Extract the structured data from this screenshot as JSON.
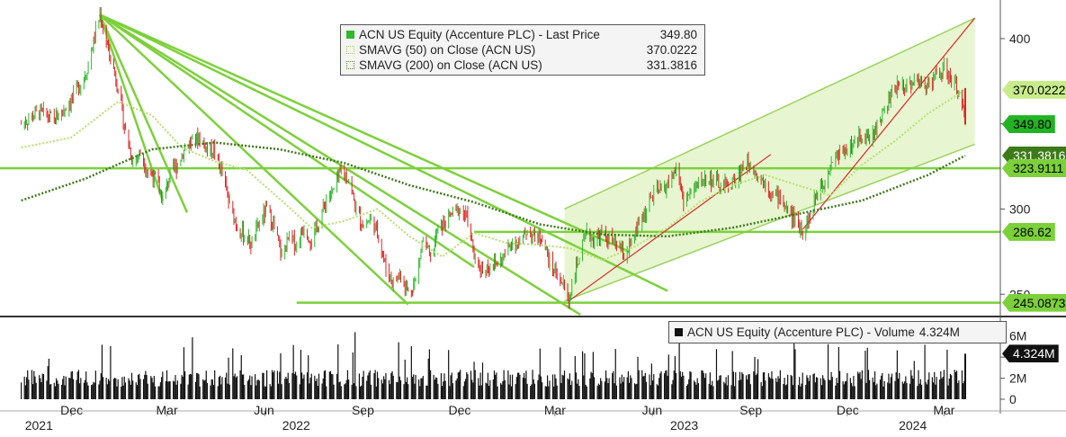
{
  "chart_data": {
    "type": "line",
    "price_panel": {
      "legend": [
        {
          "name": "ACN US Equity (Accenture PLC) - Last Price",
          "value": "349.80",
          "color": "#2eb82e"
        },
        {
          "name": "SMAVG (50)  on Close (ACN US)",
          "value": "370.0222",
          "color": "#c2e67a"
        },
        {
          "name": "SMAVG (200)  on Close (ACN US)",
          "value": "331.3816",
          "color": "#4d8a1f"
        }
      ],
      "y_ticks": [
        "400",
        "350",
        "300",
        "250"
      ],
      "ylim": [
        238,
        420
      ],
      "value_tags": [
        {
          "label": "370.0222",
          "value": 370.0222,
          "bg": "#c8ec8a",
          "fg": "#000000"
        },
        {
          "label": "349.80",
          "value": 349.8,
          "bg": "#22b322",
          "fg": "#000000"
        },
        {
          "label": "331.3816",
          "value": 331.3816,
          "bg": "#3d7a1a",
          "fg": "#ffffff"
        },
        {
          "label": "323.9111",
          "value": 323.9111,
          "bg": "#7cd13a",
          "fg": "#000000"
        },
        {
          "label": "286.62",
          "value": 286.62,
          "bg": "#7cd13a",
          "fg": "#000000"
        },
        {
          "label": "245.0873",
          "value": 245.0873,
          "bg": "#7cd13a",
          "fg": "#000000"
        }
      ],
      "close_series": [
        {
          "date": "2021-10-15",
          "close": 350
        },
        {
          "date": "2021-11-01",
          "close": 357
        },
        {
          "date": "2021-11-15",
          "close": 352
        },
        {
          "date": "2021-12-01",
          "close": 364
        },
        {
          "date": "2021-12-15",
          "close": 380
        },
        {
          "date": "2021-12-28",
          "close": 414
        },
        {
          "date": "2022-01-05",
          "close": 393
        },
        {
          "date": "2022-01-14",
          "close": 372
        },
        {
          "date": "2022-01-21",
          "close": 345
        },
        {
          "date": "2022-01-28",
          "close": 328
        },
        {
          "date": "2022-02-04",
          "close": 333
        },
        {
          "date": "2022-02-11",
          "close": 322
        },
        {
          "date": "2022-02-18",
          "close": 318
        },
        {
          "date": "2022-02-25",
          "close": 305
        },
        {
          "date": "2022-03-04",
          "close": 320
        },
        {
          "date": "2022-03-11",
          "close": 326
        },
        {
          "date": "2022-03-18",
          "close": 336
        },
        {
          "date": "2022-03-25",
          "close": 340
        },
        {
          "date": "2022-04-01",
          "close": 342
        },
        {
          "date": "2022-04-08",
          "close": 335
        },
        {
          "date": "2022-04-14",
          "close": 335
        },
        {
          "date": "2022-04-22",
          "close": 321
        },
        {
          "date": "2022-04-29",
          "close": 302
        },
        {
          "date": "2022-05-06",
          "close": 290
        },
        {
          "date": "2022-05-13",
          "close": 284
        },
        {
          "date": "2022-05-20",
          "close": 279
        },
        {
          "date": "2022-05-27",
          "close": 292
        },
        {
          "date": "2022-06-03",
          "close": 300
        },
        {
          "date": "2022-06-10",
          "close": 289
        },
        {
          "date": "2022-06-17",
          "close": 272
        },
        {
          "date": "2022-06-24",
          "close": 283
        },
        {
          "date": "2022-07-01",
          "close": 279
        },
        {
          "date": "2022-07-08",
          "close": 290
        },
        {
          "date": "2022-07-15",
          "close": 281
        },
        {
          "date": "2022-07-22",
          "close": 292
        },
        {
          "date": "2022-07-29",
          "close": 306
        },
        {
          "date": "2022-08-05",
          "close": 311
        },
        {
          "date": "2022-08-12",
          "close": 322
        },
        {
          "date": "2022-08-19",
          "close": 318
        },
        {
          "date": "2022-08-26",
          "close": 299
        },
        {
          "date": "2022-09-02",
          "close": 290
        },
        {
          "date": "2022-09-09",
          "close": 294
        },
        {
          "date": "2022-09-16",
          "close": 285
        },
        {
          "date": "2022-09-23",
          "close": 265
        },
        {
          "date": "2022-09-30",
          "close": 257
        },
        {
          "date": "2022-10-07",
          "close": 262
        },
        {
          "date": "2022-10-14",
          "close": 251
        },
        {
          "date": "2022-10-21",
          "close": 258
        },
        {
          "date": "2022-10-28",
          "close": 283
        },
        {
          "date": "2022-11-04",
          "close": 270
        },
        {
          "date": "2022-11-11",
          "close": 288
        },
        {
          "date": "2022-11-18",
          "close": 292
        },
        {
          "date": "2022-11-25",
          "close": 298
        },
        {
          "date": "2022-12-02",
          "close": 300
        },
        {
          "date": "2022-12-09",
          "close": 294
        },
        {
          "date": "2022-12-16",
          "close": 268
        },
        {
          "date": "2022-12-23",
          "close": 265
        },
        {
          "date": "2022-12-30",
          "close": 267
        },
        {
          "date": "2023-01-06",
          "close": 268
        },
        {
          "date": "2023-01-13",
          "close": 273
        },
        {
          "date": "2023-01-20",
          "close": 282
        },
        {
          "date": "2023-01-27",
          "close": 279
        },
        {
          "date": "2023-02-03",
          "close": 288
        },
        {
          "date": "2023-02-10",
          "close": 283
        },
        {
          "date": "2023-02-17",
          "close": 284
        },
        {
          "date": "2023-02-24",
          "close": 268
        },
        {
          "date": "2023-03-03",
          "close": 262
        },
        {
          "date": "2023-03-10",
          "close": 254
        },
        {
          "date": "2023-03-14",
          "close": 246
        },
        {
          "date": "2023-03-17",
          "close": 256
        },
        {
          "date": "2023-03-24",
          "close": 272
        },
        {
          "date": "2023-03-31",
          "close": 285
        },
        {
          "date": "2023-04-07",
          "close": 282
        },
        {
          "date": "2023-04-14",
          "close": 285
        },
        {
          "date": "2023-04-21",
          "close": 282
        },
        {
          "date": "2023-04-28",
          "close": 279
        },
        {
          "date": "2023-05-05",
          "close": 273
        },
        {
          "date": "2023-05-12",
          "close": 279
        },
        {
          "date": "2023-05-19",
          "close": 291
        },
        {
          "date": "2023-05-26",
          "close": 300
        },
        {
          "date": "2023-06-02",
          "close": 309
        },
        {
          "date": "2023-06-09",
          "close": 311
        },
        {
          "date": "2023-06-16",
          "close": 315
        },
        {
          "date": "2023-06-23",
          "close": 324
        },
        {
          "date": "2023-06-30",
          "close": 305
        },
        {
          "date": "2023-07-07",
          "close": 309
        },
        {
          "date": "2023-07-14",
          "close": 315
        },
        {
          "date": "2023-07-21",
          "close": 318
        },
        {
          "date": "2023-07-28",
          "close": 317
        },
        {
          "date": "2023-08-04",
          "close": 313
        },
        {
          "date": "2023-08-11",
          "close": 314
        },
        {
          "date": "2023-08-18",
          "close": 317
        },
        {
          "date": "2023-08-25",
          "close": 325
        },
        {
          "date": "2023-09-01",
          "close": 328
        },
        {
          "date": "2023-09-08",
          "close": 319
        },
        {
          "date": "2023-09-15",
          "close": 316
        },
        {
          "date": "2023-09-22",
          "close": 308
        },
        {
          "date": "2023-09-29",
          "close": 307
        },
        {
          "date": "2023-10-06",
          "close": 299
        },
        {
          "date": "2023-10-13",
          "close": 293
        },
        {
          "date": "2023-10-20",
          "close": 288
        },
        {
          "date": "2023-10-27",
          "close": 295
        },
        {
          "date": "2023-11-03",
          "close": 311
        },
        {
          "date": "2023-11-10",
          "close": 318
        },
        {
          "date": "2023-11-17",
          "close": 329
        },
        {
          "date": "2023-11-24",
          "close": 333
        },
        {
          "date": "2023-12-01",
          "close": 336
        },
        {
          "date": "2023-12-08",
          "close": 338
        },
        {
          "date": "2023-12-15",
          "close": 345
        },
        {
          "date": "2023-12-22",
          "close": 340
        },
        {
          "date": "2023-12-29",
          "close": 349
        },
        {
          "date": "2024-01-05",
          "close": 358
        },
        {
          "date": "2024-01-12",
          "close": 367
        },
        {
          "date": "2024-01-19",
          "close": 374
        },
        {
          "date": "2024-01-26",
          "close": 372
        },
        {
          "date": "2024-02-02",
          "close": 376
        },
        {
          "date": "2024-02-09",
          "close": 373
        },
        {
          "date": "2024-02-16",
          "close": 375
        },
        {
          "date": "2024-02-23",
          "close": 378
        },
        {
          "date": "2024-03-01",
          "close": 382
        },
        {
          "date": "2024-03-08",
          "close": 375
        },
        {
          "date": "2024-03-15",
          "close": 370
        },
        {
          "date": "2024-03-21",
          "close": 349.8
        }
      ],
      "sma50_series": [
        {
          "date": "2021-10-15",
          "close": 336
        },
        {
          "date": "2021-12-01",
          "close": 342
        },
        {
          "date": "2022-01-14",
          "close": 363
        },
        {
          "date": "2022-02-15",
          "close": 355
        },
        {
          "date": "2022-03-15",
          "close": 336
        },
        {
          "date": "2022-04-15",
          "close": 328
        },
        {
          "date": "2022-05-15",
          "close": 323
        },
        {
          "date": "2022-06-15",
          "close": 306
        },
        {
          "date": "2022-07-15",
          "close": 289
        },
        {
          "date": "2022-08-15",
          "close": 293
        },
        {
          "date": "2022-09-15",
          "close": 300
        },
        {
          "date": "2022-10-15",
          "close": 284
        },
        {
          "date": "2022-11-15",
          "close": 272
        },
        {
          "date": "2022-12-15",
          "close": 286
        },
        {
          "date": "2023-01-15",
          "close": 280
        },
        {
          "date": "2023-02-15",
          "close": 279
        },
        {
          "date": "2023-03-15",
          "close": 277
        },
        {
          "date": "2023-04-15",
          "close": 270
        },
        {
          "date": "2023-05-15",
          "close": 278
        },
        {
          "date": "2023-06-15",
          "close": 289
        },
        {
          "date": "2023-07-15",
          "close": 304
        },
        {
          "date": "2023-08-15",
          "close": 314
        },
        {
          "date": "2023-09-15",
          "close": 320
        },
        {
          "date": "2023-10-15",
          "close": 314
        },
        {
          "date": "2023-11-15",
          "close": 308
        },
        {
          "date": "2023-12-15",
          "close": 326
        },
        {
          "date": "2024-01-15",
          "close": 340
        },
        {
          "date": "2024-02-15",
          "close": 356
        },
        {
          "date": "2024-03-21",
          "close": 370.0222
        }
      ],
      "sma200_series": [
        {
          "date": "2021-10-15",
          "close": 305
        },
        {
          "date": "2021-12-15",
          "close": 318
        },
        {
          "date": "2022-02-15",
          "close": 335
        },
        {
          "date": "2022-04-15",
          "close": 339
        },
        {
          "date": "2022-06-15",
          "close": 335
        },
        {
          "date": "2022-08-15",
          "close": 327
        },
        {
          "date": "2022-10-15",
          "close": 314
        },
        {
          "date": "2022-12-15",
          "close": 304
        },
        {
          "date": "2023-02-15",
          "close": 291
        },
        {
          "date": "2023-04-15",
          "close": 285
        },
        {
          "date": "2023-06-15",
          "close": 284
        },
        {
          "date": "2023-08-15",
          "close": 289
        },
        {
          "date": "2023-10-15",
          "close": 297
        },
        {
          "date": "2023-12-15",
          "close": 305
        },
        {
          "date": "2024-02-15",
          "close": 320
        },
        {
          "date": "2024-03-21",
          "close": 331.3816
        }
      ],
      "horizontal_levels": [
        323.9111,
        286.62,
        245.0873
      ]
    },
    "volume_panel": {
      "legend": {
        "name": "ACN US Equity (Accenture PLC) - Volume",
        "value": "4.324M"
      },
      "y_ticks": [
        "6M",
        "4M",
        "2M",
        "0"
      ],
      "ylim": [
        0,
        7
      ],
      "unit": "M",
      "last_value": 4.324,
      "value_tag": "4.324M"
    },
    "x_axis": {
      "months": [
        {
          "label": "Dec",
          "date": "2021-12-01"
        },
        {
          "label": "Mar",
          "date": "2022-03-01"
        },
        {
          "label": "Jun",
          "date": "2022-06-01"
        },
        {
          "label": "Sep",
          "date": "2022-09-01"
        },
        {
          "label": "Dec",
          "date": "2022-12-01"
        },
        {
          "label": "Mar",
          "date": "2023-03-01"
        },
        {
          "label": "Jun",
          "date": "2023-06-01"
        },
        {
          "label": "Sep",
          "date": "2023-09-01"
        },
        {
          "label": "Dec",
          "date": "2023-12-01"
        },
        {
          "label": "Mar",
          "date": "2024-03-01"
        }
      ],
      "years": [
        {
          "label": "2021",
          "date": "2021-11-01"
        },
        {
          "label": "2022",
          "date": "2022-07-01"
        },
        {
          "label": "2023",
          "date": "2023-07-01"
        },
        {
          "label": "2024",
          "date": "2024-02-01"
        }
      ]
    }
  }
}
